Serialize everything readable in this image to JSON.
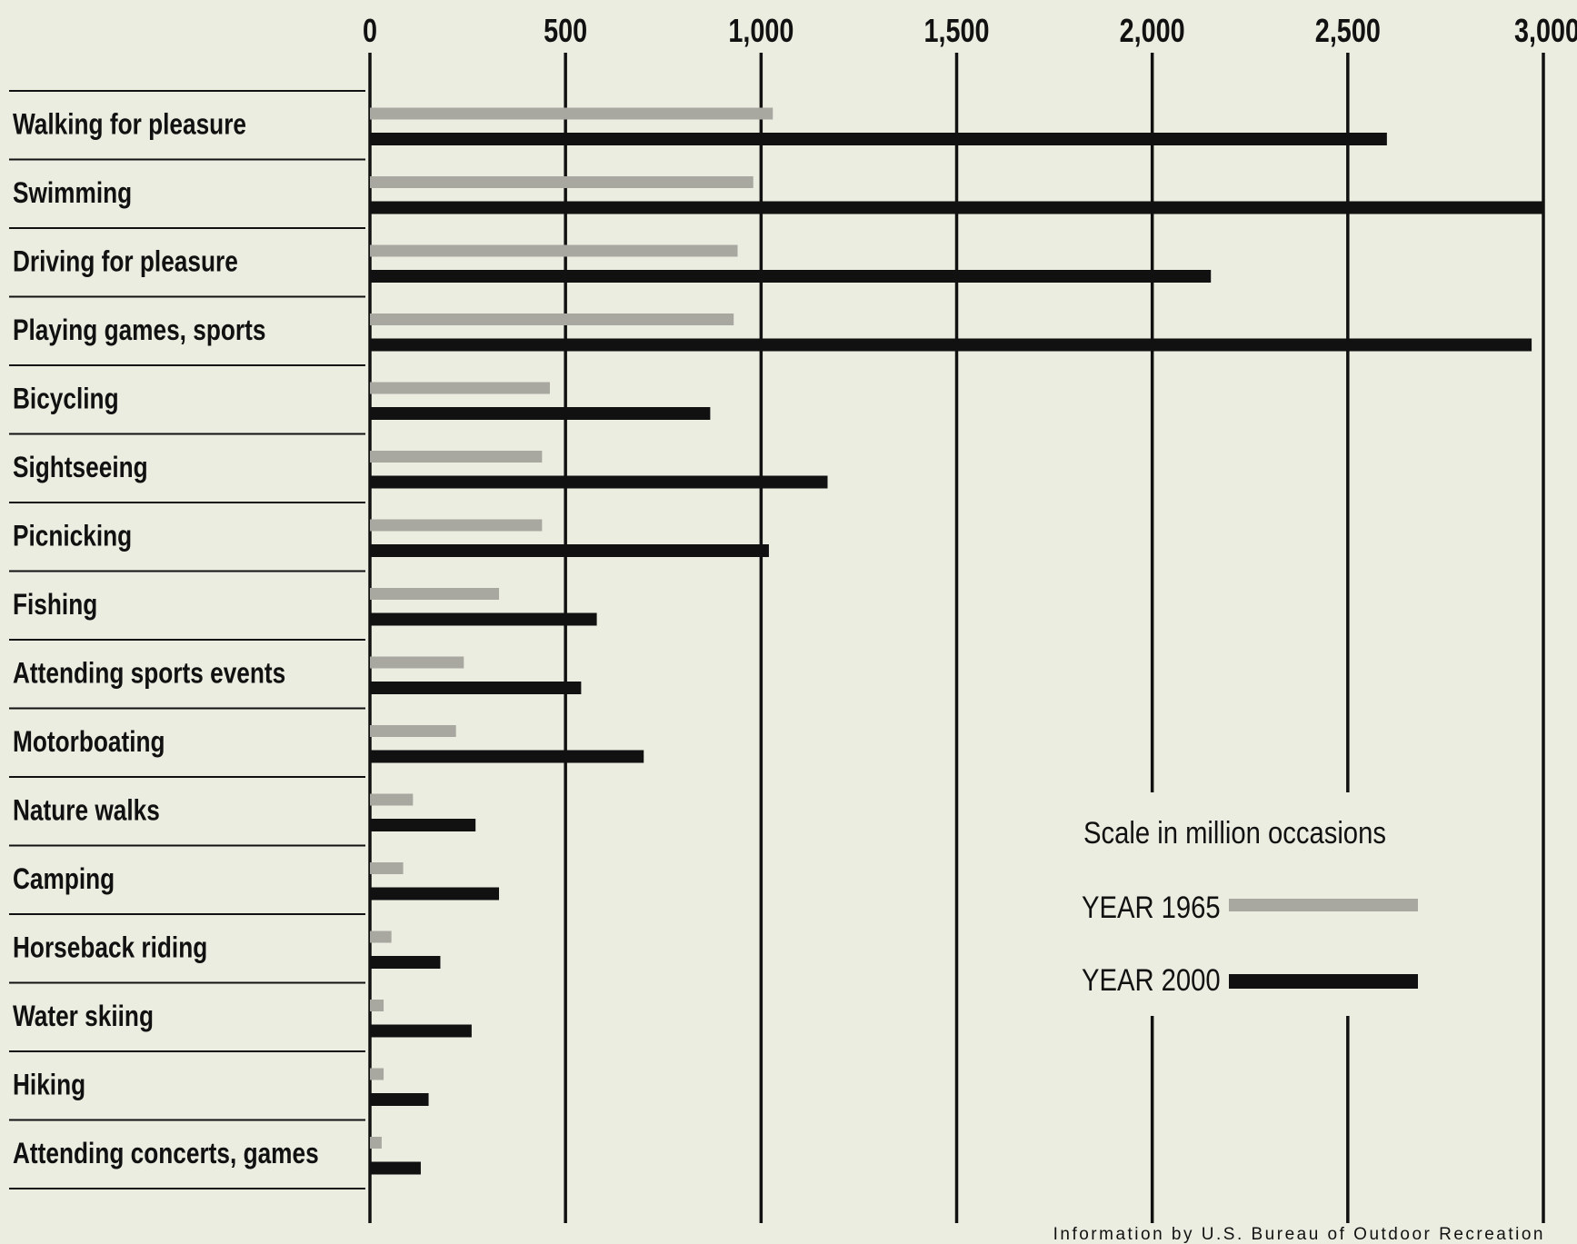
{
  "chart_data": {
    "type": "bar",
    "orientation": "horizontal",
    "categories": [
      "Walking for pleasure",
      "Swimming",
      "Driving for pleasure",
      "Playing games, sports",
      "Bicycling",
      "Sightseeing",
      "Picnicking",
      "Fishing",
      "Attending sports events",
      "Motorboating",
      "Nature walks",
      "Camping",
      "Horseback riding",
      "Water skiing",
      "Hiking",
      "Attending concerts, games"
    ],
    "series": [
      {
        "name": "YEAR 1965",
        "color": "#a8a8a0",
        "values": [
          1030,
          980,
          940,
          930,
          460,
          440,
          440,
          330,
          240,
          220,
          110,
          85,
          55,
          35,
          35,
          30
        ]
      },
      {
        "name": "YEAR 2000",
        "color": "#111111",
        "values": [
          2600,
          3000,
          2150,
          2970,
          870,
          1170,
          1020,
          580,
          540,
          700,
          270,
          330,
          180,
          260,
          150,
          130
        ]
      }
    ],
    "x_ticks": [
      0,
      500,
      1000,
      1500,
      2000,
      2500,
      3000
    ],
    "x_tick_labels": [
      "0",
      "500",
      "1,000",
      "1,500",
      "2,000",
      "2,500",
      "3,000"
    ],
    "xlim": [
      0,
      3000
    ],
    "legend_title": "Scale in million occasions",
    "legend_position": "lower-right",
    "source_note": "Information by U.S. Bureau of Outdoor Recreation",
    "grid": true
  }
}
